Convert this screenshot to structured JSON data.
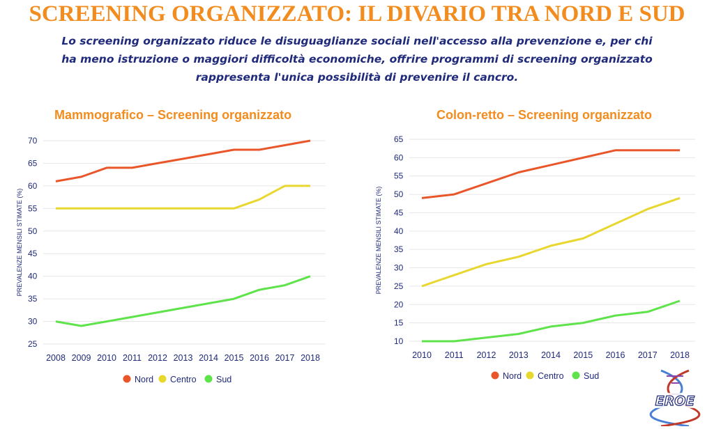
{
  "header": {
    "title": "SCREENING ORGANIZZATO: IL DIVARIO TRA NORD E SUD",
    "subtitle_lines": [
      "Lo screening organizzato riduce le disuguaglianze sociali nell'accesso alla prevenzione e, per chi",
      "ha meno istruzione o maggiori difficoltà economiche, offrire programmi di screening organizzato",
      "rappresenta l'unica possibilità di prevenire il cancro."
    ]
  },
  "logo": {
    "text": "EROE",
    "icon": "dna-helix-icon"
  },
  "colors": {
    "nord": "#e8562a",
    "centro": "#e8d72e",
    "sud": "#5ee34a",
    "axis_text": "#1f2a7a",
    "title": "#f28c1e"
  },
  "chart_data": [
    {
      "type": "line",
      "title": "Mammografico – Screening organizzato",
      "ylabel": "PREVALENZE  MENSILI STIMATE (%)",
      "xlabel": "",
      "x": [
        "2008",
        "2009",
        "2010",
        "2011",
        "2012",
        "2013",
        "2014",
        "2015",
        "2016",
        "2017",
        "2018"
      ],
      "ylim": [
        25,
        70
      ],
      "yticks": [
        25,
        30,
        35,
        40,
        45,
        50,
        55,
        60,
        65,
        70
      ],
      "grid": true,
      "legend": "bottom",
      "series": [
        {
          "name": "Nord",
          "color": "#e8562a",
          "values": [
            61,
            62,
            64,
            64,
            65,
            66,
            67,
            68,
            68,
            69,
            70
          ]
        },
        {
          "name": "Centro",
          "color": "#e8d72e",
          "values": [
            55,
            55,
            55,
            55,
            55,
            55,
            55,
            55,
            57,
            60,
            60
          ]
        },
        {
          "name": "Sud",
          "color": "#5ee34a",
          "values": [
            30,
            29,
            30,
            31,
            32,
            33,
            34,
            35,
            37,
            38,
            40
          ]
        }
      ]
    },
    {
      "type": "line",
      "title": "Colon-retto – Screening organizzato",
      "ylabel": "PREVALENZE  MENSILI STIMATE (%)",
      "xlabel": "",
      "x": [
        "2010",
        "2011",
        "2012",
        "2013",
        "2014",
        "2015",
        "2016",
        "2017",
        "2018"
      ],
      "ylim": [
        10,
        65
      ],
      "yticks": [
        10,
        15,
        20,
        25,
        30,
        35,
        40,
        45,
        50,
        55,
        60,
        65
      ],
      "grid": true,
      "legend": "bottom",
      "series": [
        {
          "name": "Nord",
          "color": "#e8562a",
          "values": [
            49,
            50,
            53,
            56,
            58,
            60,
            62,
            62,
            62
          ]
        },
        {
          "name": "Centro",
          "color": "#e8d72e",
          "values": [
            25,
            28,
            31,
            33,
            36,
            38,
            42,
            46,
            49
          ]
        },
        {
          "name": "Sud",
          "color": "#5ee34a",
          "values": [
            10,
            10,
            11,
            12,
            14,
            15,
            17,
            18,
            21
          ]
        }
      ]
    }
  ]
}
